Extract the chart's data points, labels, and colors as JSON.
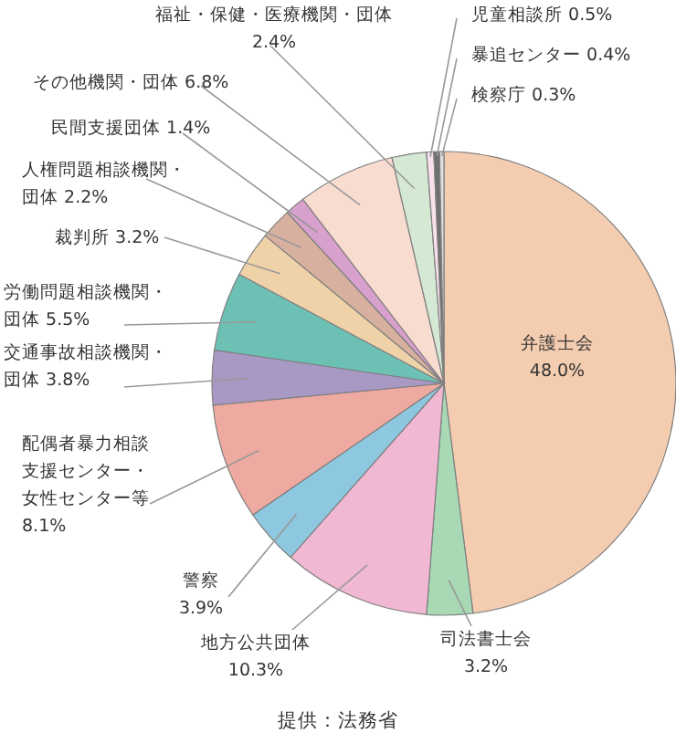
{
  "chart_data": {
    "type": "pie",
    "categories": [
      "弁護士会",
      "司法書士会",
      "地方公共団体",
      "警察",
      "配偶者暴力相談支援センター・女性センター等",
      "交通事故相談機関・団体",
      "労働問題相談機関・団体",
      "裁判所",
      "人権問題相談機関・団体",
      "民間支援団体",
      "その他機関・団体",
      "福祉・保健・医療機関・団体",
      "児童相談所",
      "暴追センター",
      "検察庁"
    ],
    "values": [
      48.0,
      3.2,
      10.3,
      3.9,
      8.1,
      3.8,
      5.5,
      3.2,
      2.2,
      1.4,
      6.8,
      2.4,
      0.5,
      0.4,
      0.3
    ],
    "colors": [
      "#f4cdb0",
      "#a8d8b4",
      "#f0b8d2",
      "#8ec8e0",
      "#eea9a0",
      "#a898c4",
      "#6cc0b4",
      "#f0d2a8",
      "#d8b0a0",
      "#d8a0cc",
      "#f8dcd0",
      "#d4e8d4",
      "#f8e0ec",
      "#707070",
      "#e0e0e0"
    ],
    "value_labels": [
      "48.0%",
      "3.2%",
      "10.3%",
      "3.9%",
      "8.1%",
      "3.8%",
      "5.5%",
      "3.2%",
      "2.2%",
      "1.4%",
      "6.8%",
      "2.4%",
      "0.5%",
      "0.4%",
      "0.3%"
    ],
    "annotations": [
      "提供：法務省"
    ]
  }
}
